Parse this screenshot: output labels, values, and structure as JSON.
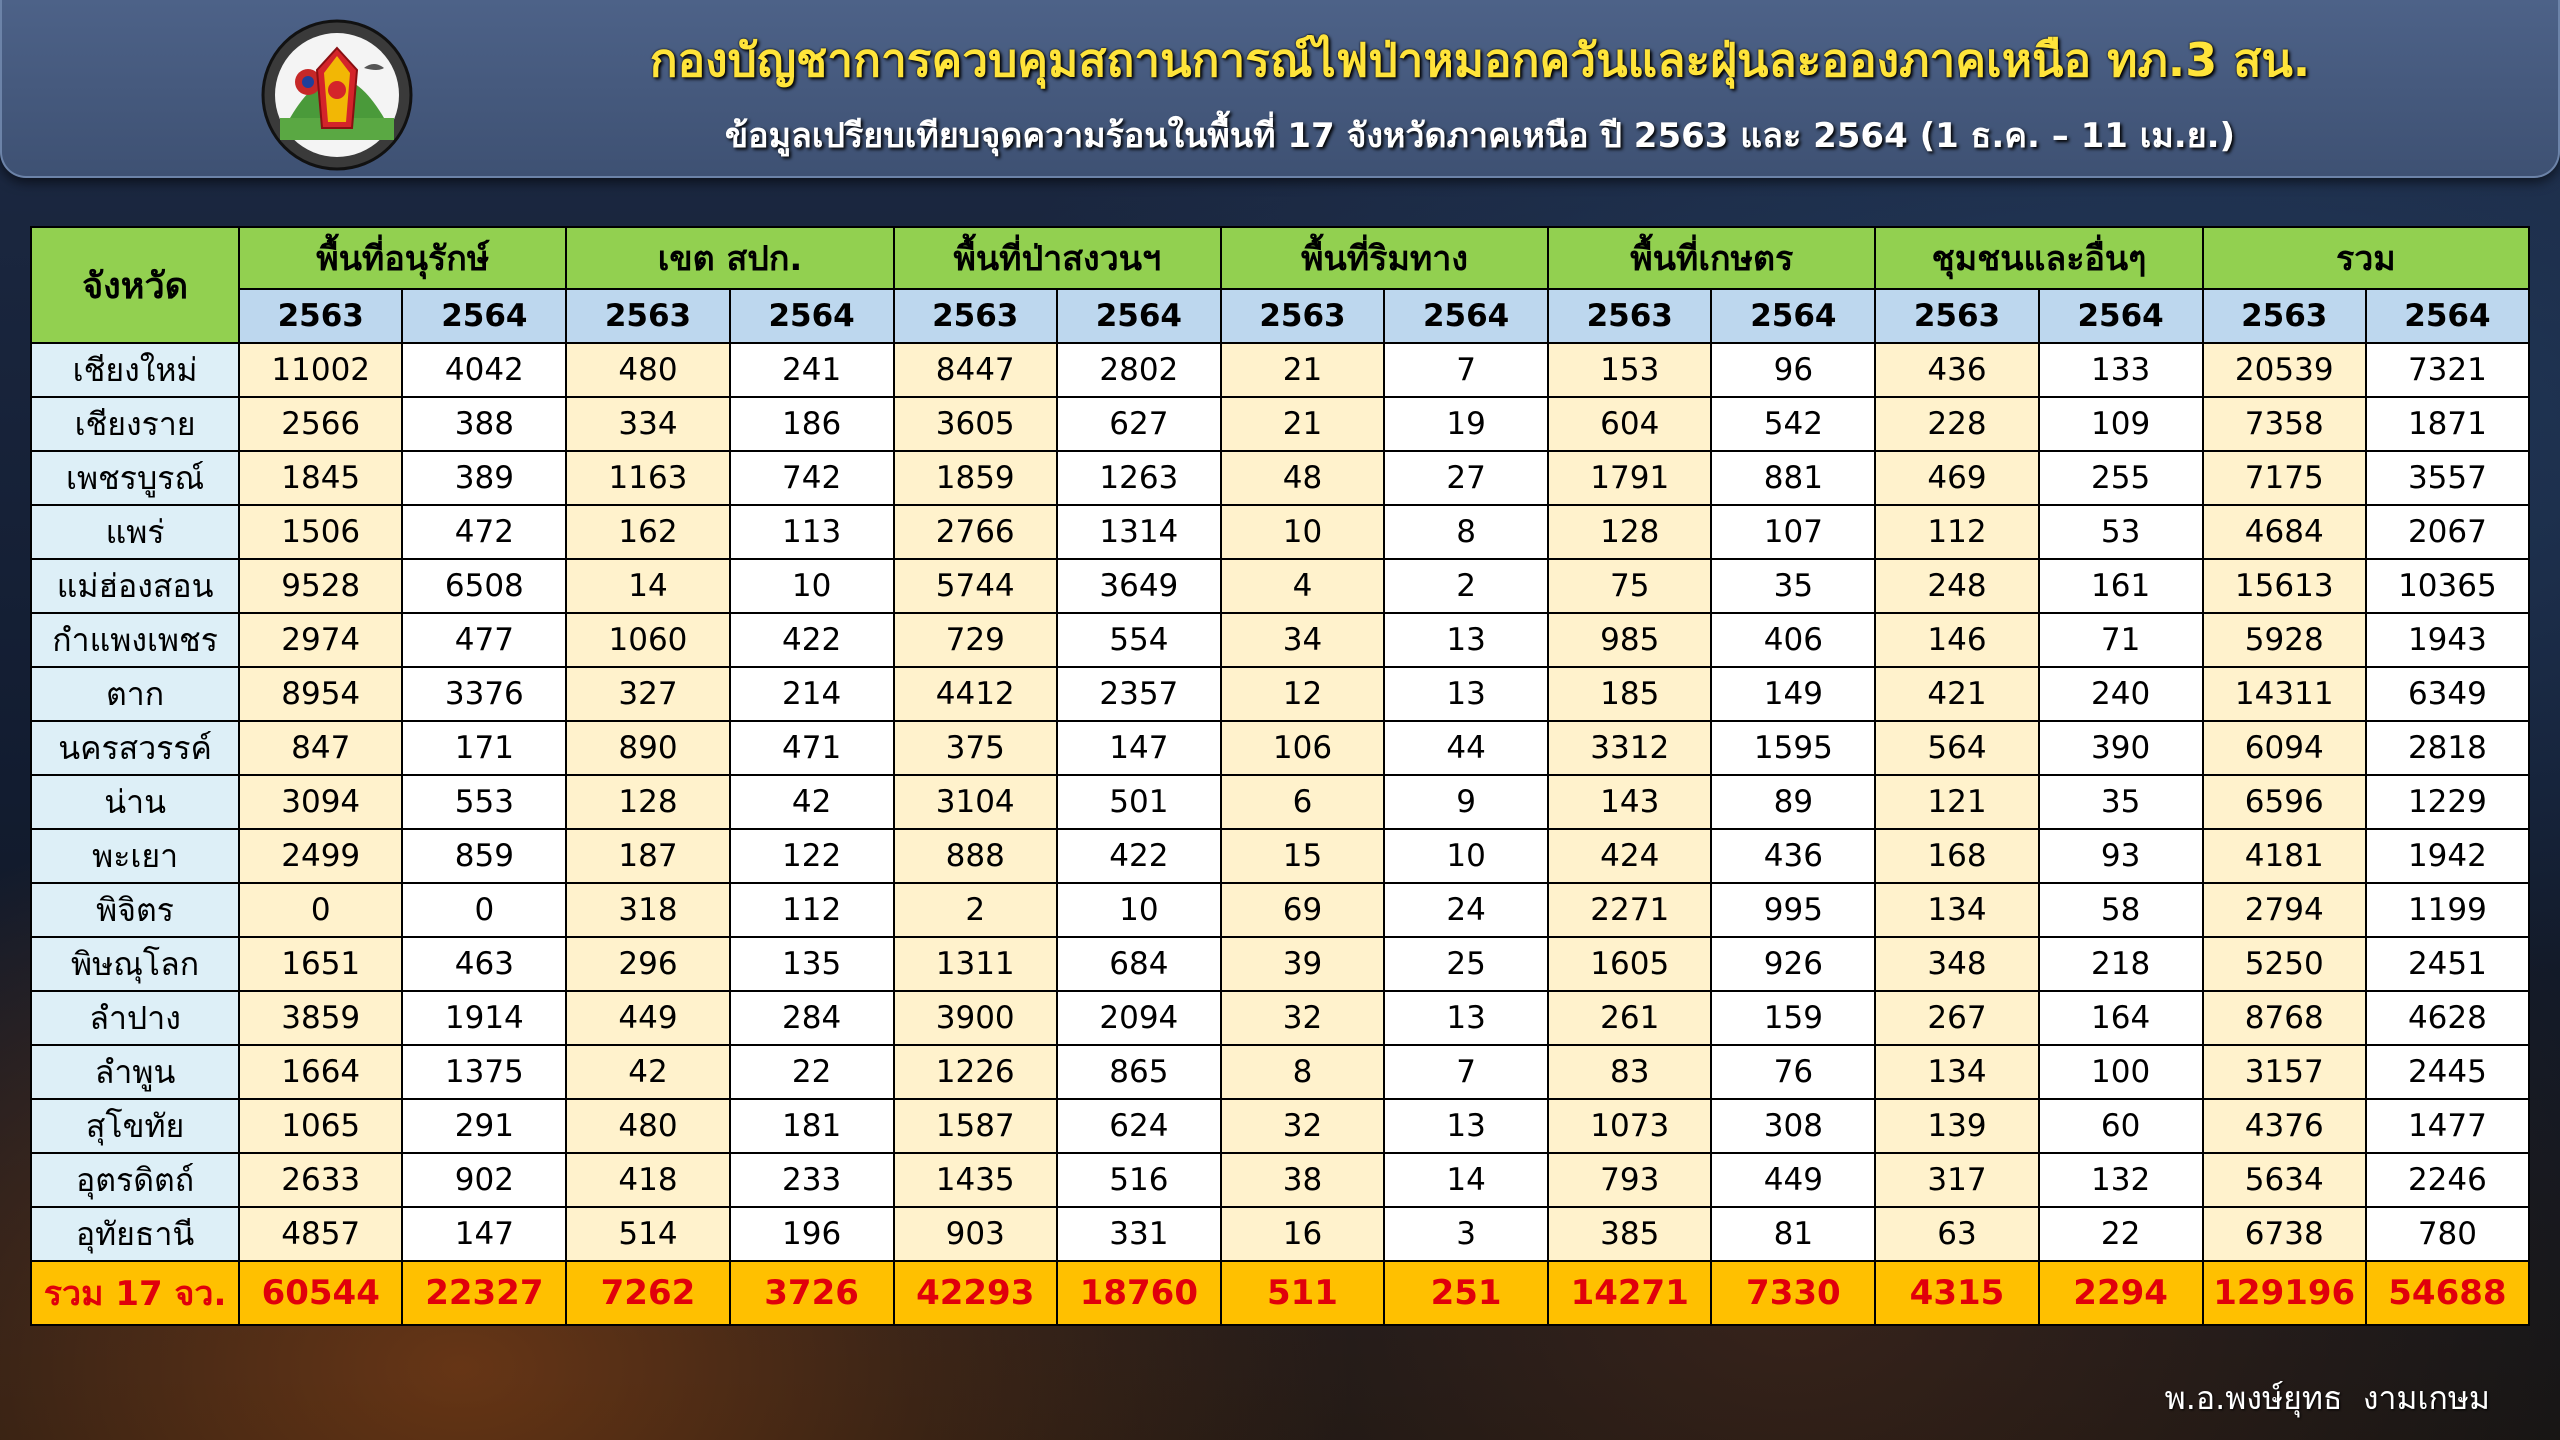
{
  "header": {
    "title": "กองบัญชาการควบคุมสถานการณ์ไฟป่าหมอกควันและฝุ่นละอองภาคเหนือ ทภ.3 สน.",
    "subtitle": "ข้อมูลเปรียบเทียบจุดความร้อนในพื้นที่ 17 จังหวัดภาคเหนือ ปี 2563 และ 2564 (1 ธ.ค. – 11 เม.ย.)",
    "logo_icon": "army-region-3-emblem-icon"
  },
  "table": {
    "province_header": "จังหวัด",
    "groups": [
      "พื้นที่อนุรักษ์",
      "เขต สปก.",
      "พื้นที่ป่าสงวนฯ",
      "พื้นที่ริมทาง",
      "พื้นที่เกษตร",
      "ชุมชนและอื่นๆ",
      "รวม"
    ],
    "years": [
      "2563",
      "2564"
    ],
    "rows": [
      {
        "province": "เชียงใหม่",
        "values": [
          "11002",
          "4042",
          "480",
          "241",
          "8447",
          "2802",
          "21",
          "7",
          "153",
          "96",
          "436",
          "133",
          "20539",
          "7321"
        ]
      },
      {
        "province": "เชียงราย",
        "values": [
          "2566",
          "388",
          "334",
          "186",
          "3605",
          "627",
          "21",
          "19",
          "604",
          "542",
          "228",
          "109",
          "7358",
          "1871"
        ]
      },
      {
        "province": "เพชรบูรณ์",
        "values": [
          "1845",
          "389",
          "1163",
          "742",
          "1859",
          "1263",
          "48",
          "27",
          "1791",
          "881",
          "469",
          "255",
          "7175",
          "3557"
        ]
      },
      {
        "province": "แพร่",
        "values": [
          "1506",
          "472",
          "162",
          "113",
          "2766",
          "1314",
          "10",
          "8",
          "128",
          "107",
          "112",
          "53",
          "4684",
          "2067"
        ]
      },
      {
        "province": "แม่ฮ่องสอน",
        "values": [
          "9528",
          "6508",
          "14",
          "10",
          "5744",
          "3649",
          "4",
          "2",
          "75",
          "35",
          "248",
          "161",
          "15613",
          "10365"
        ]
      },
      {
        "province": "กำแพงเพชร",
        "values": [
          "2974",
          "477",
          "1060",
          "422",
          "729",
          "554",
          "34",
          "13",
          "985",
          "406",
          "146",
          "71",
          "5928",
          "1943"
        ]
      },
      {
        "province": "ตาก",
        "values": [
          "8954",
          "3376",
          "327",
          "214",
          "4412",
          "2357",
          "12",
          "13",
          "185",
          "149",
          "421",
          "240",
          "14311",
          "6349"
        ]
      },
      {
        "province": "นครสวรรค์",
        "values": [
          "847",
          "171",
          "890",
          "471",
          "375",
          "147",
          "106",
          "44",
          "3312",
          "1595",
          "564",
          "390",
          "6094",
          "2818"
        ]
      },
      {
        "province": "น่าน",
        "values": [
          "3094",
          "553",
          "128",
          "42",
          "3104",
          "501",
          "6",
          "9",
          "143",
          "89",
          "121",
          "35",
          "6596",
          "1229"
        ]
      },
      {
        "province": "พะเยา",
        "values": [
          "2499",
          "859",
          "187",
          "122",
          "888",
          "422",
          "15",
          "10",
          "424",
          "436",
          "168",
          "93",
          "4181",
          "1942"
        ]
      },
      {
        "province": "พิจิตร",
        "values": [
          "0",
          "0",
          "318",
          "112",
          "2",
          "10",
          "69",
          "24",
          "2271",
          "995",
          "134",
          "58",
          "2794",
          "1199"
        ]
      },
      {
        "province": "พิษณุโลก",
        "values": [
          "1651",
          "463",
          "296",
          "135",
          "1311",
          "684",
          "39",
          "25",
          "1605",
          "926",
          "348",
          "218",
          "5250",
          "2451"
        ]
      },
      {
        "province": "ลำปาง",
        "values": [
          "3859",
          "1914",
          "449",
          "284",
          "3900",
          "2094",
          "32",
          "13",
          "261",
          "159",
          "267",
          "164",
          "8768",
          "4628"
        ]
      },
      {
        "province": "ลำพูน",
        "values": [
          "1664",
          "1375",
          "42",
          "22",
          "1226",
          "865",
          "8",
          "7",
          "83",
          "76",
          "134",
          "100",
          "3157",
          "2445"
        ]
      },
      {
        "province": "สุโขทัย",
        "values": [
          "1065",
          "291",
          "480",
          "181",
          "1587",
          "624",
          "32",
          "13",
          "1073",
          "308",
          "139",
          "60",
          "4376",
          "1477"
        ]
      },
      {
        "province": "อุตรดิตถ์",
        "values": [
          "2633",
          "902",
          "418",
          "233",
          "1435",
          "516",
          "38",
          "14",
          "793",
          "449",
          "317",
          "132",
          "5634",
          "2246"
        ]
      },
      {
        "province": "อุทัยธานี",
        "values": [
          "4857",
          "147",
          "514",
          "196",
          "903",
          "331",
          "16",
          "3",
          "385",
          "81",
          "63",
          "22",
          "6738",
          "780"
        ]
      }
    ],
    "total": {
      "label": "รวม 17 จว.",
      "values": [
        "60544",
        "22327",
        "7262",
        "3726",
        "42293",
        "18760",
        "511",
        "251",
        "14271",
        "7330",
        "4315",
        "2294",
        "129196",
        "54688"
      ]
    }
  },
  "footer": {
    "author": "พ.อ.พงษ์ยุทธ  งามเกษม"
  },
  "colors": {
    "header_green": "#92d050",
    "year_blue": "#bdd7ee",
    "cell_2563": "#fff2cc",
    "cell_2564": "#ffffff",
    "province_cell": "#ddeff7",
    "total_row": "#ffc000",
    "total_text": "#e0000b",
    "title_yellow": "#ffe43a"
  }
}
